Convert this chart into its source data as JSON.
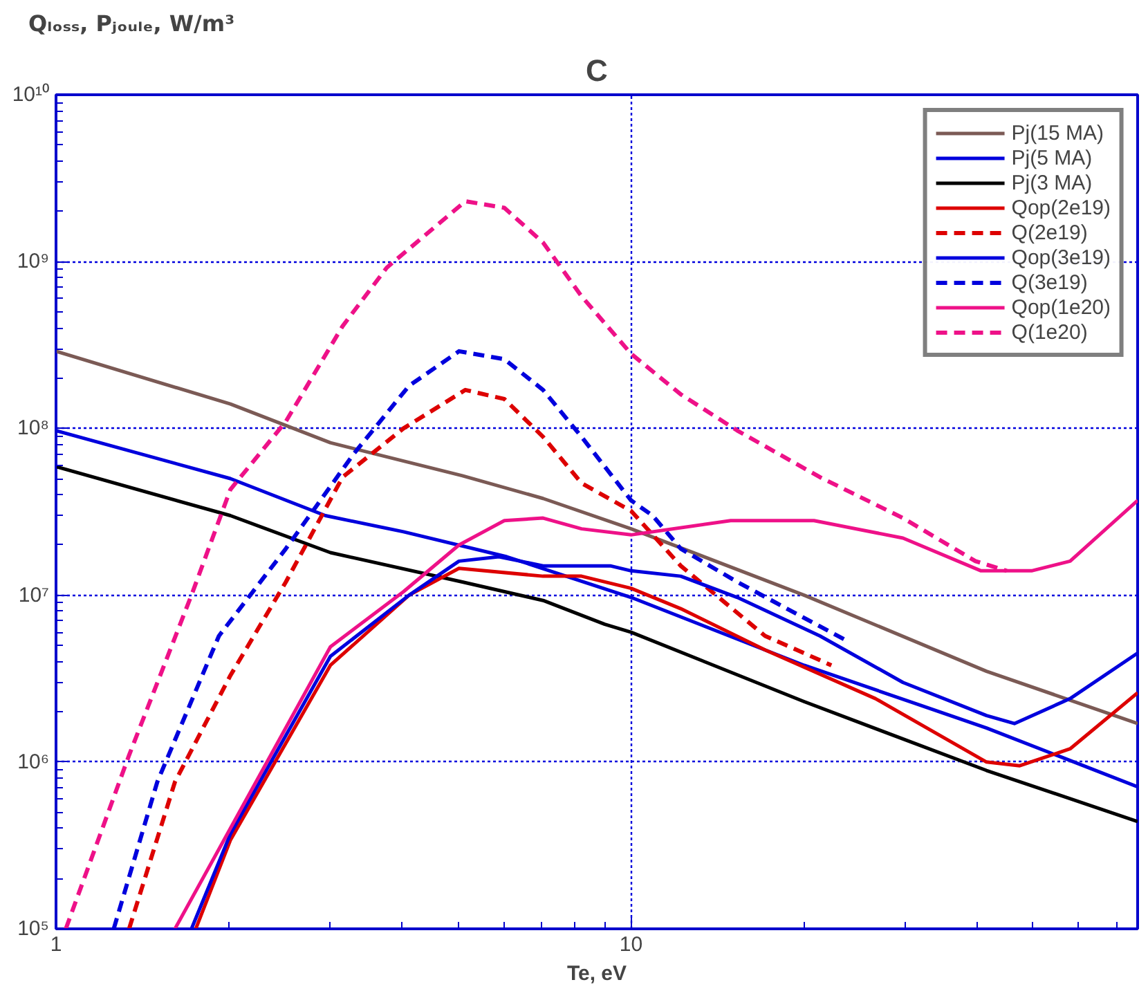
{
  "chart_data": {
    "type": "line",
    "title": "C",
    "ylabel": "Qₗₒₛₛ, Pⱼₒᵤₗₑ, W/m³",
    "xlabel": "Te, eV",
    "log": "xy",
    "grid": true,
    "legend": "top right",
    "marker": "none",
    "xlim": [
      1,
      76
    ],
    "xticks": [
      1,
      10
    ],
    "ylim": [
      100000.0,
      10000000000.0
    ],
    "yticks": [
      {
        "value": 100000.0,
        "label": "10⁵"
      },
      {
        "value": 1000000.0,
        "label": "10⁶"
      },
      {
        "value": 10000000.0,
        "label": "10⁷"
      },
      {
        "value": 100000000.0,
        "label": "10⁸"
      },
      {
        "value": 1000000000.0,
        "label": "10⁹"
      },
      {
        "value": 10000000000.0,
        "label": "10¹⁰"
      }
    ],
    "series": [
      {
        "name": "Pj(15 MA)",
        "color": "#7b5a55",
        "line_style": "solid",
        "x": [
          1,
          2.01,
          3.0,
          5.09,
          7.03,
          10,
          20,
          41.5,
          76
        ],
        "values": [
          290000000.0,
          140000000.0,
          82000000.0,
          52000000.0,
          38000000.0,
          25000000.0,
          10000000.0,
          3500000.0,
          1700000.0
        ]
      },
      {
        "name": "Pj(5 MA)",
        "color": "#0000dd",
        "line_style": "solid",
        "x": [
          1,
          2.01,
          2.94,
          4.02,
          6.08,
          10,
          20,
          41.5,
          76
        ],
        "values": [
          97000000.0,
          50000000.0,
          30000000.0,
          24000000.0,
          17000000.0,
          9700000.0,
          3800000.0,
          1600000.0,
          710000.0
        ]
      },
      {
        "name": "Pj(3 MA)",
        "color": "#000000",
        "line_style": "solid",
        "x": [
          1,
          2.01,
          3.0,
          5.09,
          7.03,
          9.0,
          10,
          20,
          41.5,
          76
        ],
        "values": [
          59000000.0,
          30000000.0,
          18000000.0,
          12000000.0,
          9300000.0,
          6700000.0,
          6000000.0,
          2300000.0,
          890000.0,
          440000.0
        ]
      },
      {
        "name": "Qop(2e19)",
        "color": "#dd0000",
        "line_style": "solid",
        "x": [
          1.75,
          2.01,
          3.0,
          4.11,
          5.02,
          7.03,
          8.2,
          10,
          12.2,
          17.1,
          26.6,
          41.5,
          47.4,
          58,
          76
        ],
        "values": [
          100000.0,
          340000.0,
          3800000.0,
          10000000.0,
          14500000.0,
          13000000.0,
          13000000.0,
          11000000.0,
          8300000.0,
          4700000.0,
          2400000.0,
          1000000.0,
          950000.0,
          1200000.0,
          2600000.0
        ]
      },
      {
        "name": "Q(2e19)",
        "color": "#dd0000",
        "line_style": "dashed",
        "x": [
          1.34,
          1.61,
          2.01,
          2.51,
          3.15,
          4.02,
          5.15,
          6.02,
          7.03,
          8.2,
          10,
          12.2,
          17.1,
          22.3
        ],
        "values": [
          100000.0,
          760000.0,
          3300000.0,
          12000000.0,
          51000000.0,
          100000000.0,
          170000000.0,
          150000000.0,
          89000000.0,
          47000000.0,
          32000000.0,
          15000000.0,
          5700000.0,
          3800000.0
        ]
      },
      {
        "name": "Qop(3e19)",
        "color": "#0000dd",
        "line_style": "solid",
        "x": [
          1.72,
          2.01,
          3.0,
          4.11,
          5.02,
          5.89,
          7.03,
          9.2,
          10,
          12.2,
          15.3,
          21.3,
          29.7,
          41.5,
          46.4,
          58,
          76
        ],
        "values": [
          100000.0,
          370000.0,
          4300000.0,
          10000000.0,
          16000000.0,
          17000000.0,
          15000000.0,
          15000000.0,
          14000000.0,
          13000000.0,
          9700000.0,
          5700000.0,
          3000000.0,
          1900000.0,
          1700000.0,
          2400000.0,
          4500000.0
        ]
      },
      {
        "name": "Q(3e19)",
        "color": "#0000dd",
        "line_style": "dashed",
        "x": [
          1.26,
          1.5,
          1.92,
          2.51,
          3.29,
          4.11,
          5.02,
          6.02,
          7.03,
          8.2,
          10,
          10.9,
          12.2,
          15.3,
          21.3,
          23.8
        ],
        "values": [
          100000.0,
          760000.0,
          5700000.0,
          19000000.0,
          70000000.0,
          180000000.0,
          290000000.0,
          260000000.0,
          170000000.0,
          89000000.0,
          37000000.0,
          30000000.0,
          19000000.0,
          12000000.0,
          6500000.0,
          5300000.0
        ]
      },
      {
        "name": "Qop(1e20)",
        "color": "#ee1188",
        "line_style": "solid",
        "x": [
          1.61,
          2.01,
          3.0,
          4.02,
          5.02,
          6.02,
          7.03,
          8.2,
          10,
          14.9,
          20.8,
          29.7,
          40.6,
          49.7,
          58,
          76
        ],
        "values": [
          100000.0,
          400000.0,
          4900000.0,
          10500000.0,
          20000000.0,
          28000000.0,
          29000000.0,
          25000000.0,
          23000000.0,
          28000000.0,
          28000000.0,
          22000000.0,
          14000000.0,
          14000000.0,
          16000000.0,
          37000000.0
        ]
      },
      {
        "name": "Q(1e20)",
        "color": "#ee1188",
        "line_style": "dashed",
        "x": [
          1.04,
          1.34,
          1.72,
          2.01,
          2.51,
          3.15,
          3.76,
          5.15,
          6.02,
          7.03,
          8.2,
          10,
          12.2,
          15.3,
          21.3,
          29.7,
          39.7,
          45
        ],
        "values": [
          100000.0,
          1100000.0,
          10000000.0,
          43000000.0,
          110000000.0,
          410000000.0,
          920000000.0,
          2300000000.0,
          2100000000.0,
          1300000000.0,
          620000000.0,
          280000000.0,
          160000000.0,
          97000000.0,
          51000000.0,
          29000000.0,
          16000000.0,
          14000000.0
        ]
      }
    ]
  }
}
